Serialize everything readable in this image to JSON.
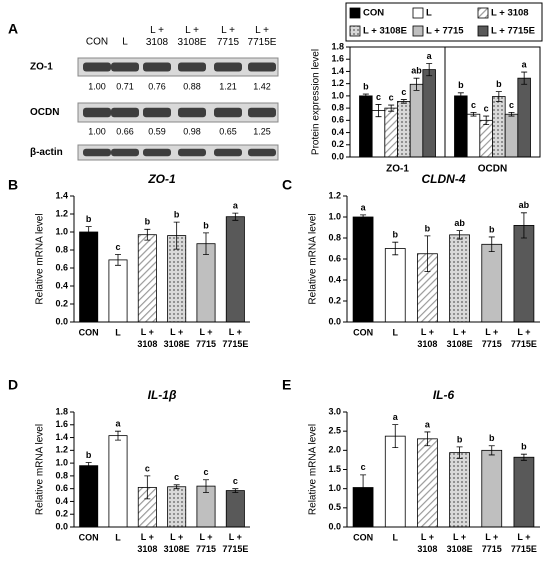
{
  "blot": {
    "panel_label": "A",
    "lanes": [
      "CON",
      "L",
      "L +\n3108",
      "L +\n3108E",
      "L +\n7715",
      "L +\n7715E"
    ],
    "rows": [
      {
        "label": "ZO-1",
        "values": [
          "1.00",
          "0.71",
          "0.76",
          "0.88",
          "1.21",
          "1.42"
        ]
      },
      {
        "label": "OCDN",
        "values": [
          "1.00",
          "0.66",
          "0.59",
          "0.98",
          "0.65",
          "1.25"
        ]
      },
      {
        "label": "β-actin"
      }
    ]
  },
  "chart_data": [
    {
      "type": "grouped_bar",
      "ylabel": "Protein expression level",
      "categories": [
        "ZO-1",
        "OCDN"
      ],
      "ylim": [
        0,
        1.8
      ],
      "yticks": [
        {
          "value": 0,
          "label": "0.0"
        },
        0.2,
        0.4,
        0.6,
        0.8,
        {
          "value": 1,
          "label": "1.0"
        },
        1.2,
        1.4,
        1.6,
        1.8
      ],
      "legend": "top",
      "series": [
        {
          "name": "CON",
          "color": "#000000",
          "pattern": "solid",
          "values": [
            1.0,
            1.0
          ],
          "errors": [
            0.03,
            0.05
          ],
          "letters": [
            "b",
            "b"
          ]
        },
        {
          "name": "L",
          "color": "#ffffff",
          "pattern": "solid",
          "values": [
            0.76,
            0.7
          ],
          "errors": [
            0.1,
            0.03
          ],
          "letters": [
            "c",
            "c"
          ]
        },
        {
          "name": "L + 3108",
          "color": "#ffffff",
          "pattern": "hatch",
          "values": [
            0.8,
            0.6
          ],
          "errors": [
            0.05,
            0.07
          ],
          "letters": [
            "c",
            "c"
          ]
        },
        {
          "name": "L + 3108E",
          "color": "#a6a6a6",
          "pattern": "dots",
          "values": [
            0.91,
            0.99
          ],
          "errors": [
            0.03,
            0.08
          ],
          "letters": [
            "c",
            "b"
          ]
        },
        {
          "name": "L + 7715",
          "color": "#bfbfbf",
          "pattern": "solid",
          "values": [
            1.19,
            0.7
          ],
          "errors": [
            0.1,
            0.03
          ],
          "letters": [
            "ab",
            "c"
          ]
        },
        {
          "name": "L + 7715E",
          "color": "#595959",
          "pattern": "solid",
          "values": [
            1.43,
            1.29
          ],
          "errors": [
            0.1,
            0.1
          ],
          "letters": [
            "a",
            "a"
          ]
        }
      ]
    },
    {
      "type": "bar",
      "panel_label": "B",
      "title": "ZO-1",
      "ylabel": "Relative mRNA level",
      "categories": [
        "CON",
        "L",
        "L +\n3108",
        "L +\n3108E",
        "L +\n7715",
        "L +\n7715E"
      ],
      "colors": [
        "#000000",
        "#ffffff",
        "#ffffff",
        "#a6a6a6",
        "#bfbfbf",
        "#595959"
      ],
      "patterns": [
        "solid",
        "solid",
        "hatch",
        "dots",
        "solid",
        "solid"
      ],
      "values": [
        1.0,
        0.69,
        0.97,
        0.96,
        0.87,
        1.17
      ],
      "errors": [
        0.06,
        0.06,
        0.06,
        0.15,
        0.12,
        0.04
      ],
      "letters": [
        "b",
        "c",
        "b",
        "b",
        "b",
        "a"
      ],
      "ylim": [
        0,
        1.4
      ],
      "yticks": [
        {
          "value": 0,
          "label": "0.0"
        },
        0.2,
        0.4,
        0.6,
        0.8,
        {
          "value": 1,
          "label": "1.0"
        },
        1.2,
        1.4
      ]
    },
    {
      "type": "bar",
      "panel_label": "C",
      "title": "CLDN-4",
      "ylabel": "Relative mRNA level",
      "categories": [
        "CON",
        "L",
        "L +\n3108",
        "L +\n3108E",
        "L +\n7715",
        "L +\n7715E"
      ],
      "colors": [
        "#000000",
        "#ffffff",
        "#ffffff",
        "#a6a6a6",
        "#bfbfbf",
        "#595959"
      ],
      "patterns": [
        "solid",
        "solid",
        "hatch",
        "dots",
        "solid",
        "solid"
      ],
      "values": [
        1.0,
        0.7,
        0.65,
        0.83,
        0.74,
        0.92
      ],
      "errors": [
        0.02,
        0.06,
        0.17,
        0.04,
        0.07,
        0.12
      ],
      "letters": [
        "a",
        "b",
        "b",
        "ab",
        "b",
        "ab"
      ],
      "ylim": [
        0,
        1.2
      ],
      "yticks": [
        {
          "value": 0,
          "label": "0.0"
        },
        0.2,
        0.4,
        0.6,
        0.8,
        {
          "value": 1,
          "label": "1.0"
        },
        1.2
      ]
    },
    {
      "type": "bar",
      "panel_label": "D",
      "title": "IL-1β",
      "ylabel": "Relative mRNA level",
      "categories": [
        "CON",
        "L",
        "L +\n3108",
        "L +\n3108E",
        "L +\n7715",
        "L +\n7715E"
      ],
      "colors": [
        "#000000",
        "#ffffff",
        "#ffffff",
        "#a6a6a6",
        "#bfbfbf",
        "#595959"
      ],
      "patterns": [
        "solid",
        "solid",
        "hatch",
        "dots",
        "solid",
        "solid"
      ],
      "values": [
        0.96,
        1.43,
        0.62,
        0.63,
        0.64,
        0.57
      ],
      "errors": [
        0.05,
        0.07,
        0.18,
        0.03,
        0.1,
        0.03
      ],
      "letters": [
        "b",
        "a",
        "c",
        "c",
        "c",
        "c"
      ],
      "ylim": [
        0,
        1.8
      ],
      "yticks": [
        {
          "value": 0,
          "label": "0.0"
        },
        0.2,
        0.4,
        0.6,
        0.8,
        {
          "value": 1,
          "label": "1.0"
        },
        1.2,
        1.4,
        1.6,
        1.8
      ]
    },
    {
      "type": "bar",
      "panel_label": "E",
      "title": "IL-6",
      "ylabel": "Relative mRNA level",
      "categories": [
        "CON",
        "L",
        "L +\n3108",
        "L +\n3108E",
        "L +\n7715",
        "L +\n7715E"
      ],
      "colors": [
        "#000000",
        "#ffffff",
        "#ffffff",
        "#a6a6a6",
        "#bfbfbf",
        "#595959"
      ],
      "patterns": [
        "solid",
        "solid",
        "hatch",
        "dots",
        "solid",
        "solid"
      ],
      "values": [
        1.03,
        2.37,
        2.3,
        1.94,
        2.0,
        1.82
      ],
      "errors": [
        0.33,
        0.3,
        0.18,
        0.15,
        0.12,
        0.08
      ],
      "letters": [
        "c",
        "a",
        "a",
        "b",
        "b",
        "b"
      ],
      "ylim": [
        0,
        3
      ],
      "yticks": [
        {
          "value": 0,
          "label": "0.0"
        },
        0.5,
        {
          "value": 1,
          "label": "1.0"
        },
        1.5,
        {
          "value": 2,
          "label": "2.0"
        },
        2.5,
        {
          "value": 3,
          "label": "3.0"
        }
      ]
    }
  ]
}
